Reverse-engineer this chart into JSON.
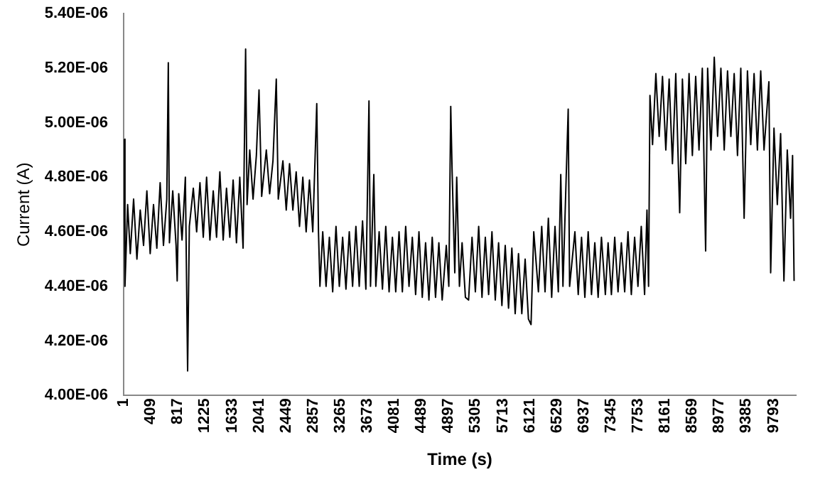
{
  "chart_data": {
    "type": "line",
    "xlabel": "Time (s)",
    "ylabel": "Current (A)",
    "marker": "none",
    "line_style": "solid",
    "xlim": [
      1,
      10130
    ],
    "xticks": [
      1,
      409,
      817,
      1225,
      1633,
      2041,
      2449,
      2857,
      3265,
      3673,
      4081,
      4489,
      4897,
      5305,
      5713,
      6121,
      6529,
      6937,
      7345,
      7753,
      8161,
      8569,
      8977,
      9385,
      9793
    ],
    "ylim": [
      4e-06,
      5.4e-06
    ],
    "yticks": [
      {
        "value": 4e-06,
        "label": "4.00E-06"
      },
      {
        "value": 4.2e-06,
        "label": "4.20E-06"
      },
      {
        "value": 4.4e-06,
        "label": "4.40E-06"
      },
      {
        "value": 4.6e-06,
        "label": "4.60E-06"
      },
      {
        "value": 4.8e-06,
        "label": "4.80E-06"
      },
      {
        "value": 5e-06,
        "label": "5.00E-06"
      },
      {
        "value": 5.2e-06,
        "label": "5.20E-06"
      },
      {
        "value": 5.4e-06,
        "label": "5.40E-06"
      }
    ],
    "series": [
      {
        "color": "#000000",
        "x": [
          1,
          20,
          60,
          100,
          150,
          200,
          250,
          300,
          350,
          400,
          450,
          500,
          550,
          600,
          650,
          673,
          690,
          740,
          790,
          807,
          830,
          880,
          930,
          964,
          990,
          1050,
          1100,
          1150,
          1200,
          1250,
          1300,
          1350,
          1400,
          1450,
          1500,
          1550,
          1600,
          1650,
          1700,
          1750,
          1800,
          1838,
          1860,
          1900,
          1950,
          2000,
          2040,
          2080,
          2150,
          2200,
          2250,
          2300,
          2330,
          2400,
          2450,
          2500,
          2550,
          2600,
          2650,
          2700,
          2750,
          2800,
          2850,
          2910,
          2936,
          2958,
          3000,
          3050,
          3100,
          3150,
          3200,
          3250,
          3300,
          3350,
          3400,
          3450,
          3500,
          3550,
          3600,
          3650,
          3697,
          3720,
          3770,
          3800,
          3850,
          3900,
          3950,
          4000,
          4050,
          4100,
          4150,
          4200,
          4250,
          4300,
          4350,
          4400,
          4450,
          4500,
          4550,
          4600,
          4650,
          4700,
          4750,
          4800,
          4862,
          4900,
          4929,
          4950,
          4990,
          5019,
          5060,
          5100,
          5150,
          5198,
          5250,
          5300,
          5350,
          5400,
          5450,
          5500,
          5550,
          5600,
          5650,
          5700,
          5750,
          5800,
          5850,
          5900,
          5950,
          6000,
          6050,
          6100,
          6139,
          6180,
          6250,
          6300,
          6350,
          6400,
          6450,
          6500,
          6550,
          6587,
          6620,
          6699,
          6720,
          6800,
          6850,
          6900,
          6950,
          7000,
          7050,
          7100,
          7150,
          7200,
          7259,
          7300,
          7350,
          7400,
          7450,
          7500,
          7550,
          7600,
          7650,
          7700,
          7750,
          7800,
          7850,
          7886,
          7910,
          7931,
          7970,
          8020,
          8070,
          8120,
          8170,
          8220,
          8270,
          8320,
          8379,
          8420,
          8470,
          8520,
          8570,
          8620,
          8670,
          8720,
          8770,
          8800,
          8850,
          8900,
          8950,
          9000,
          9050,
          9100,
          9150,
          9200,
          9250,
          9300,
          9350,
          9400,
          9450,
          9500,
          9550,
          9600,
          9650,
          9723,
          9750,
          9800,
          9850,
          9900,
          9950,
          10000,
          10050,
          10080,
          10103
        ],
        "values": [
          4.94e-06,
          4.4e-06,
          4.7e-06,
          4.52e-06,
          4.72e-06,
          4.5e-06,
          4.68e-06,
          4.55e-06,
          4.75e-06,
          4.52e-06,
          4.7e-06,
          4.54e-06,
          4.78e-06,
          4.55e-06,
          4.72e-06,
          5.22e-06,
          4.56e-06,
          4.75e-06,
          4.55e-06,
          4.42e-06,
          4.74e-06,
          4.57e-06,
          4.8e-06,
          4.09e-06,
          4.62e-06,
          4.76e-06,
          4.6e-06,
          4.78e-06,
          4.58e-06,
          4.8e-06,
          4.57e-06,
          4.75e-06,
          4.58e-06,
          4.82e-06,
          4.57e-06,
          4.76e-06,
          4.58e-06,
          4.79e-06,
          4.56e-06,
          4.8e-06,
          4.54e-06,
          5.27e-06,
          4.7e-06,
          4.9e-06,
          4.72e-06,
          4.88e-06,
          5.12e-06,
          4.73e-06,
          4.9e-06,
          4.74e-06,
          4.86e-06,
          5.16e-06,
          4.72e-06,
          4.86e-06,
          4.68e-06,
          4.85e-06,
          4.68e-06,
          4.82e-06,
          4.62e-06,
          4.8e-06,
          4.6e-06,
          4.79e-06,
          4.6e-06,
          5.07e-06,
          4.6e-06,
          4.4e-06,
          4.6e-06,
          4.4e-06,
          4.58e-06,
          4.38e-06,
          4.62e-06,
          4.4e-06,
          4.58e-06,
          4.39e-06,
          4.6e-06,
          4.4e-06,
          4.62e-06,
          4.4e-06,
          4.64e-06,
          4.39e-06,
          5.08e-06,
          4.4e-06,
          4.81e-06,
          4.4e-06,
          4.6e-06,
          4.39e-06,
          4.62e-06,
          4.38e-06,
          4.58e-06,
          4.38e-06,
          4.6e-06,
          4.38e-06,
          4.62e-06,
          4.4e-06,
          4.58e-06,
          4.37e-06,
          4.6e-06,
          4.36e-06,
          4.56e-06,
          4.35e-06,
          4.58e-06,
          4.36e-06,
          4.56e-06,
          4.35e-06,
          4.55e-06,
          4.4e-06,
          5.06e-06,
          4.82e-06,
          4.45e-06,
          4.8e-06,
          4.4e-06,
          4.56e-06,
          4.36e-06,
          4.35e-06,
          4.58e-06,
          4.38e-06,
          4.62e-06,
          4.36e-06,
          4.58e-06,
          4.37e-06,
          4.6e-06,
          4.35e-06,
          4.56e-06,
          4.33e-06,
          4.55e-06,
          4.32e-06,
          4.54e-06,
          4.3e-06,
          4.52e-06,
          4.3e-06,
          4.5e-06,
          4.28e-06,
          4.26e-06,
          4.6e-06,
          4.38e-06,
          4.62e-06,
          4.38e-06,
          4.65e-06,
          4.36e-06,
          4.62e-06,
          4.38e-06,
          4.81e-06,
          4.4e-06,
          5.05e-06,
          4.4e-06,
          4.6e-06,
          4.37e-06,
          4.58e-06,
          4.36e-06,
          4.6e-06,
          4.37e-06,
          4.56e-06,
          4.36e-06,
          4.58e-06,
          4.37e-06,
          4.56e-06,
          4.37e-06,
          4.58e-06,
          4.38e-06,
          4.56e-06,
          4.38e-06,
          4.6e-06,
          4.37e-06,
          4.58e-06,
          4.4e-06,
          4.62e-06,
          4.37e-06,
          4.68e-06,
          4.4e-06,
          5.1e-06,
          4.92e-06,
          5.18e-06,
          4.95e-06,
          5.17e-06,
          4.9e-06,
          5.16e-06,
          4.85e-06,
          5.18e-06,
          4.67e-06,
          5.16e-06,
          4.85e-06,
          5.18e-06,
          4.88e-06,
          5.17e-06,
          4.9e-06,
          5.2e-06,
          4.53e-06,
          5.2e-06,
          4.9e-06,
          5.24e-06,
          4.95e-06,
          5.2e-06,
          4.9e-06,
          5.19e-06,
          4.95e-06,
          5.18e-06,
          4.88e-06,
          5.2e-06,
          4.65e-06,
          5.19e-06,
          4.92e-06,
          5.18e-06,
          4.9e-06,
          5.19e-06,
          4.9e-06,
          5.15e-06,
          4.45e-06,
          4.98e-06,
          4.7e-06,
          4.96e-06,
          4.42e-06,
          4.9e-06,
          4.65e-06,
          4.88e-06,
          4.42e-06
        ]
      }
    ]
  }
}
